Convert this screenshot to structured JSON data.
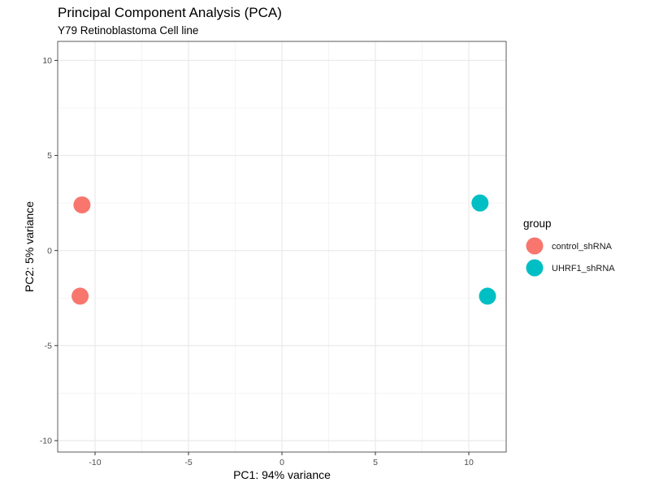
{
  "chart_data": {
    "type": "scatter",
    "title": "Principal Component Analysis (PCA)",
    "subtitle": "Y79 Retinoblastoma Cell line",
    "xlabel": "PC1: 94% variance",
    "ylabel": "PC2: 5% variance",
    "xlim": [
      -12,
      12
    ],
    "ylim": [
      -10.6,
      11
    ],
    "xticks": [
      -10,
      -5,
      0,
      5,
      10
    ],
    "yticks": [
      -10,
      -5,
      0,
      5,
      10
    ],
    "xtick_labels": [
      "-10",
      "-5",
      "0",
      "5",
      "10"
    ],
    "ytick_labels": [
      "-10",
      "-5",
      "0",
      "5",
      "10"
    ],
    "grid": true,
    "legend": {
      "title": "group",
      "placement": "right"
    },
    "series": [
      {
        "name": "control_shRNA",
        "color": "#F8766D",
        "points": [
          {
            "x": -10.7,
            "y": 2.4
          },
          {
            "x": -10.8,
            "y": -2.4
          }
        ]
      },
      {
        "name": "UHRF1_shRNA",
        "color": "#00BFC4",
        "points": [
          {
            "x": 10.6,
            "y": 2.5
          },
          {
            "x": 11.0,
            "y": -2.4
          }
        ]
      }
    ]
  }
}
